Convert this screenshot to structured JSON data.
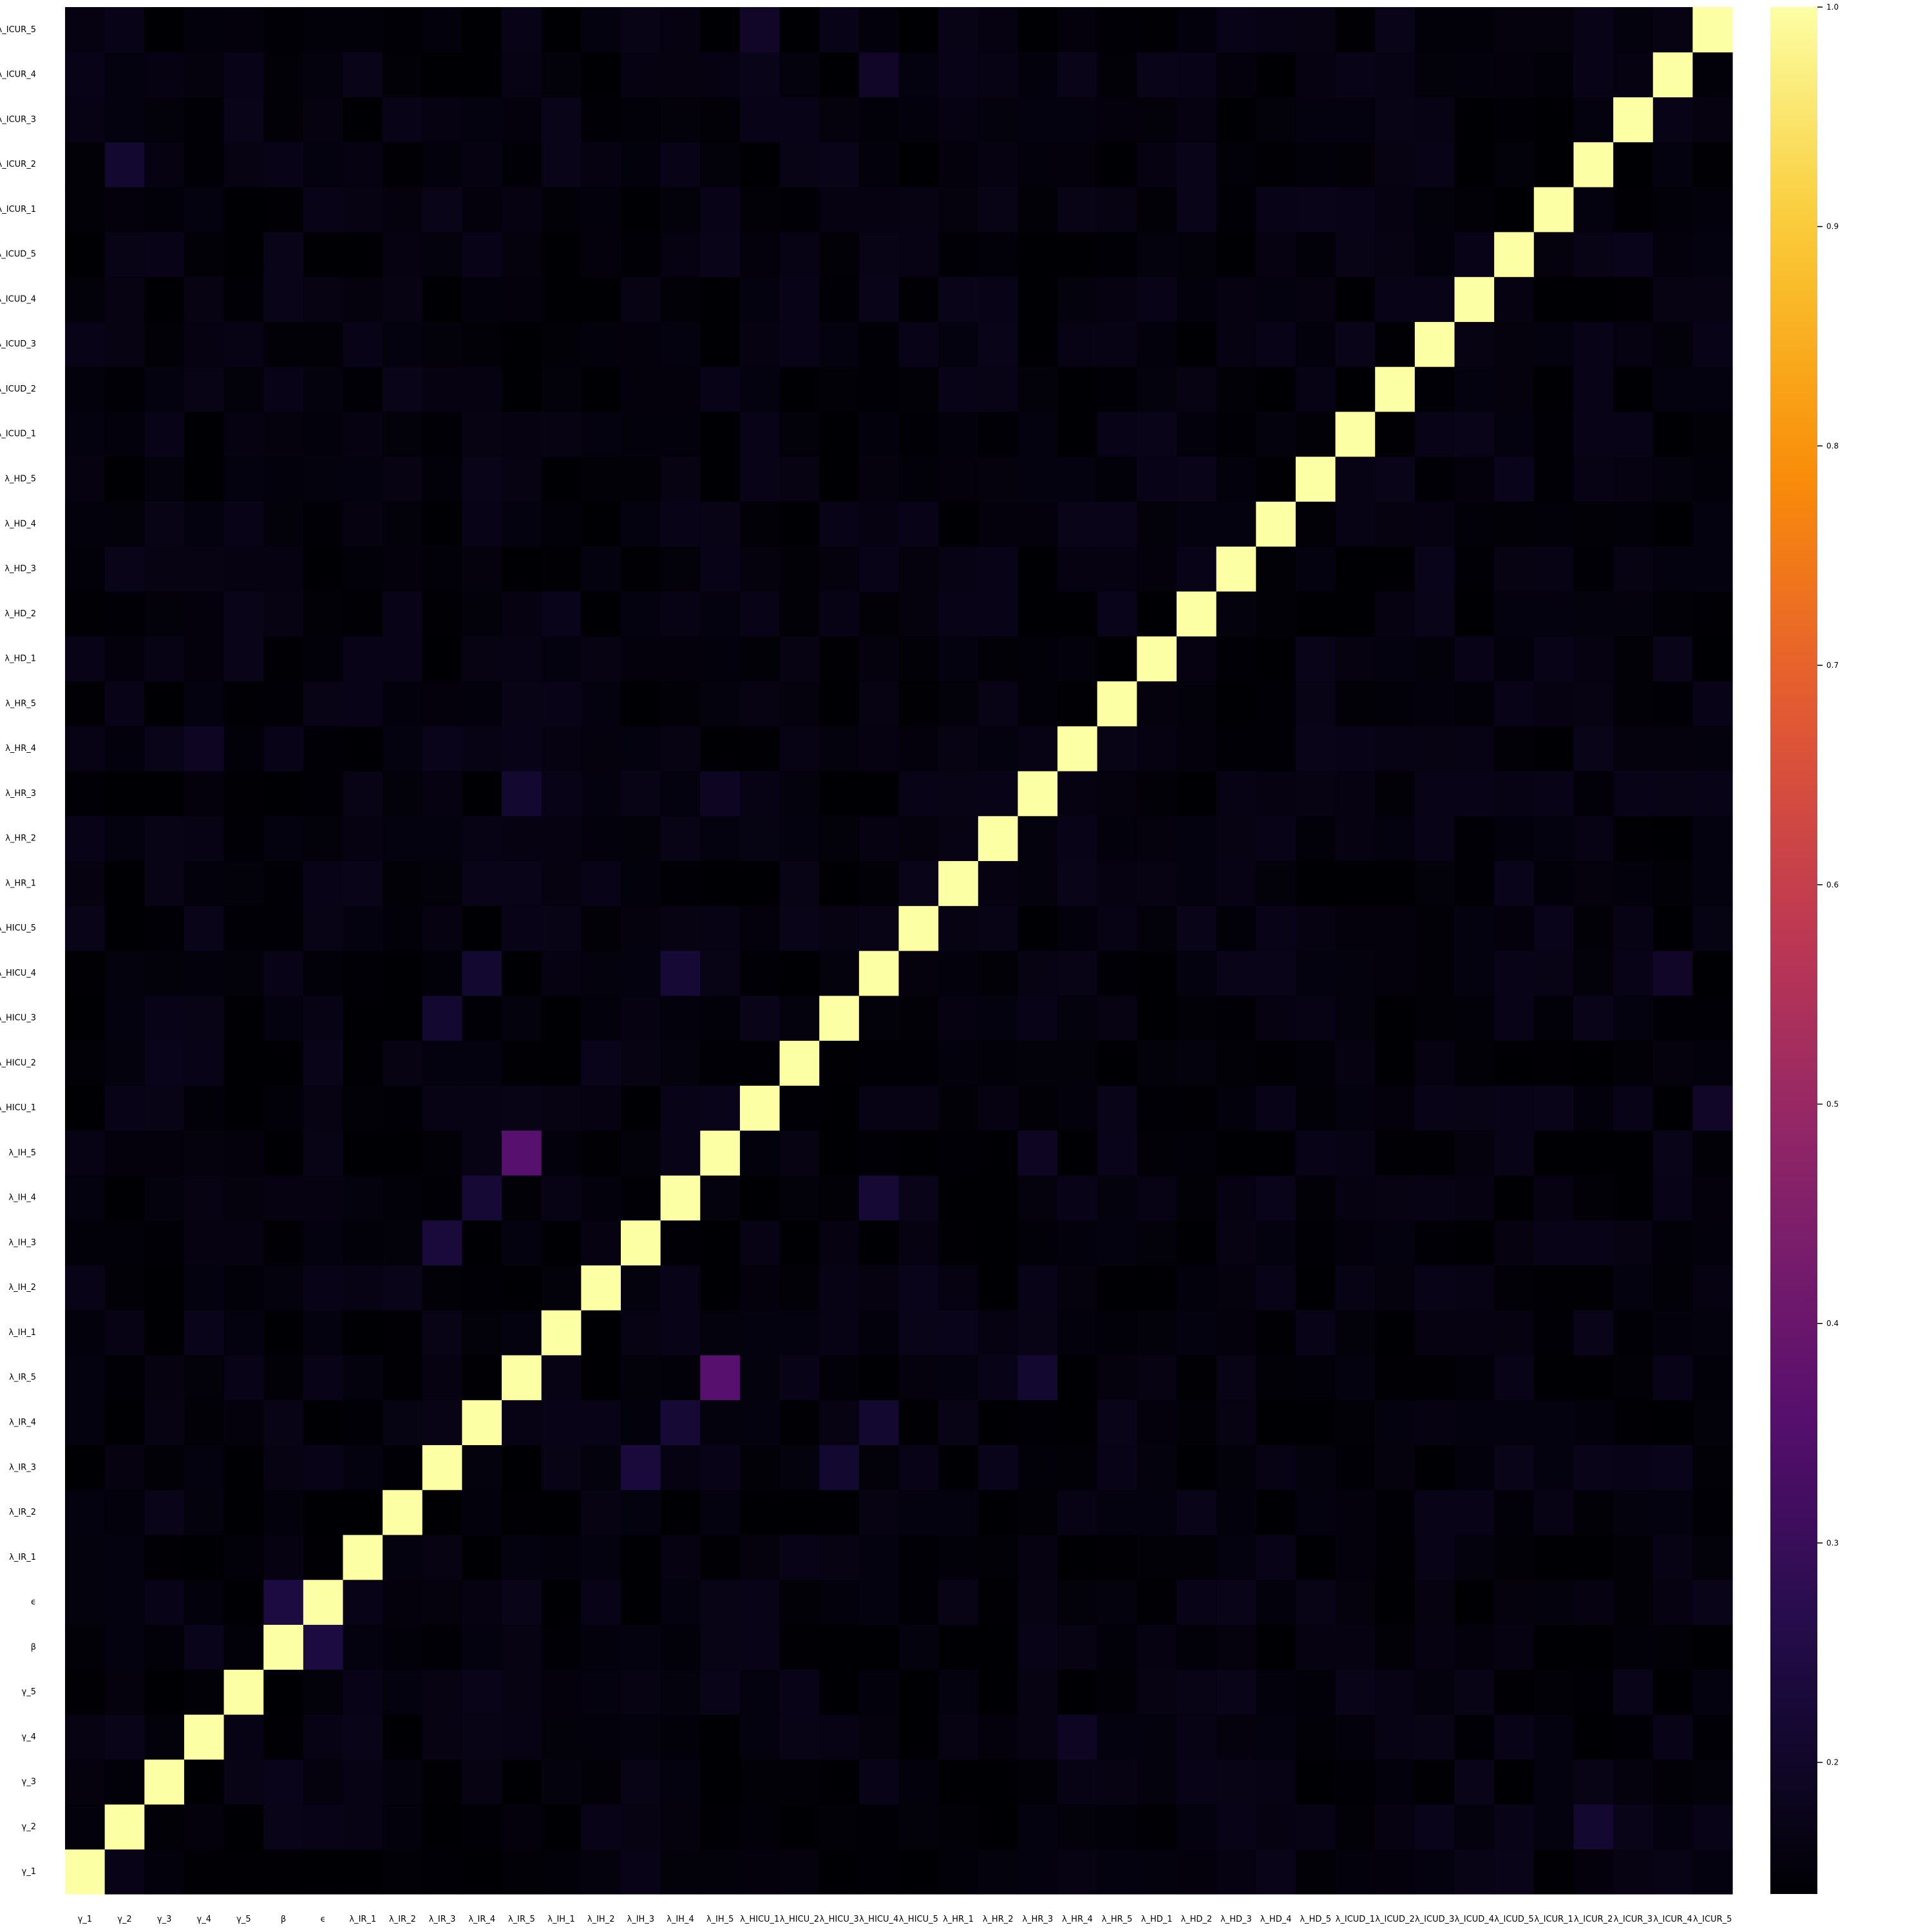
{
  "chart_data": {
    "type": "heatmap",
    "title": "",
    "xlabel": "",
    "ylabel": "",
    "colormap": "inferno",
    "variables": [
      "γ_1",
      "γ_2",
      "γ_3",
      "γ_4",
      "γ_5",
      "β",
      "ϵ",
      "λ_IR_1",
      "λ_IR_2",
      "λ_IR_3",
      "λ_IR_4",
      "λ_IR_5",
      "λ_IH_1",
      "λ_IH_2",
      "λ_IH_3",
      "λ_IH_4",
      "λ_IH_5",
      "λ_HICU_1",
      "λ_HICU_2",
      "λ_HICU_3",
      "λ_HICU_4",
      "λ_HICU_5",
      "λ_HR_1",
      "λ_HR_2",
      "λ_HR_3",
      "λ_HR_4",
      "λ_HR_5",
      "λ_HD_1",
      "λ_HD_2",
      "λ_HD_3",
      "λ_HD_4",
      "λ_HD_5",
      "λ_ICUD_1",
      "λ_ICUD_2",
      "λ_ICUD_3",
      "λ_ICUD_4",
      "λ_ICUD_5",
      "λ_ICUR_1",
      "λ_ICUR_2",
      "λ_ICUR_3",
      "λ_ICUR_4",
      "λ_ICUR_5"
    ],
    "diagonal_value": 1.0,
    "background_value": 0.155,
    "off_diagonal_highlights": [
      {
        "row": "λ_IR_5",
        "col": "λ_IH_5",
        "value": 0.36
      },
      {
        "row": "λ_IH_5",
        "col": "λ_IR_5",
        "value": 0.36
      },
      {
        "row": "ϵ",
        "col": "β",
        "value": 0.24
      },
      {
        "row": "β",
        "col": "ϵ",
        "value": 0.24
      },
      {
        "row": "λ_IH_3",
        "col": "λ_IR_3",
        "value": 0.23
      },
      {
        "row": "λ_IR_3",
        "col": "λ_IH_3",
        "value": 0.23
      },
      {
        "row": "λ_IH_4",
        "col": "λ_IR_4",
        "value": 0.22
      },
      {
        "row": "λ_IR_4",
        "col": "λ_IH_4",
        "value": 0.22
      },
      {
        "row": "λ_IH_4",
        "col": "λ_HICU_4",
        "value": 0.22
      },
      {
        "row": "λ_HICU_4",
        "col": "λ_IH_4",
        "value": 0.22
      },
      {
        "row": "λ_IR_4",
        "col": "λ_HICU_4",
        "value": 0.21
      },
      {
        "row": "λ_HICU_4",
        "col": "λ_IR_4",
        "value": 0.21
      },
      {
        "row": "λ_HICU_3",
        "col": "λ_IR_3",
        "value": 0.21
      },
      {
        "row": "λ_IR_3",
        "col": "λ_HICU_3",
        "value": 0.21
      },
      {
        "row": "λ_HR_3",
        "col": "λ_IR_5",
        "value": 0.21
      },
      {
        "row": "λ_IR_5",
        "col": "λ_HR_3",
        "value": 0.21
      },
      {
        "row": "λ_ICUR_2",
        "col": "γ_2",
        "value": 0.21
      },
      {
        "row": "γ_2",
        "col": "λ_ICUR_2",
        "value": 0.21
      },
      {
        "row": "λ_ICUR_4",
        "col": "λ_HICU_4",
        "value": 0.2
      },
      {
        "row": "λ_HICU_4",
        "col": "λ_ICUR_4",
        "value": 0.2
      },
      {
        "row": "λ_HICU_1",
        "col": "λ_ICUR_5",
        "value": 0.2
      },
      {
        "row": "λ_ICUR_5",
        "col": "λ_HICU_1",
        "value": 0.2
      },
      {
        "row": "λ_ICUR_5",
        "col": "λ_HICU_1",
        "value": 0.2
      },
      {
        "row": "λ_HR_3",
        "col": "λ_IH_5",
        "value": 0.19
      },
      {
        "row": "λ_IH_5",
        "col": "λ_HR_3",
        "value": 0.19
      },
      {
        "row": "λ_HR_4",
        "col": "γ_4",
        "value": 0.19
      },
      {
        "row": "γ_4",
        "col": "λ_HR_4",
        "value": 0.19
      }
    ],
    "colorbar": {
      "min": 0.14,
      "max": 1.0,
      "ticks": [
        0.2,
        0.3,
        0.4,
        0.5,
        0.6,
        0.7,
        0.8,
        0.9,
        1.0
      ],
      "tick_labels": [
        "0.2",
        "0.3",
        "0.4",
        "0.5",
        "0.6",
        "0.7",
        "0.8",
        "0.9",
        "1.0"
      ]
    }
  }
}
